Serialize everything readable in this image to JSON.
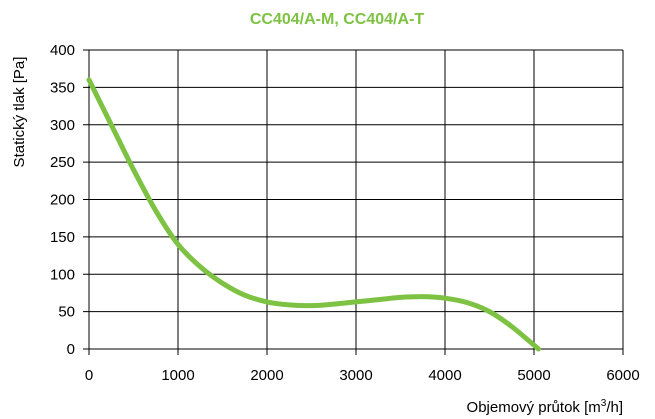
{
  "chart_data": {
    "type": "line",
    "title": "CC404/A-M, CC404/A-T",
    "xlabel_prefix": "Objemový průtok [m",
    "xlabel_sup": "3",
    "xlabel_suffix": "/h]",
    "ylabel": "Statický tlak [Pa]",
    "xlim": [
      0,
      6000
    ],
    "ylim": [
      0,
      400
    ],
    "xticks": [
      0,
      1000,
      2000,
      3000,
      4000,
      5000,
      6000
    ],
    "yticks": [
      0,
      50,
      100,
      150,
      200,
      250,
      300,
      350,
      400
    ],
    "grid": true,
    "series": [
      {
        "color": "#7dc242",
        "x": [
          0,
          250,
          500,
          750,
          1000,
          1250,
          1500,
          1750,
          2000,
          2250,
          2500,
          2750,
          3000,
          3250,
          3500,
          3750,
          4000,
          4250,
          4500,
          4750,
          5050
        ],
        "y": [
          360,
          300,
          240,
          185,
          140,
          110,
          88,
          72,
          63,
          59,
          58,
          60,
          63,
          66,
          69,
          70,
          68,
          62,
          50,
          30,
          0
        ]
      }
    ],
    "colors": {
      "title": "#7dc242",
      "series": "#7dc242",
      "grid": "#000000"
    }
  }
}
